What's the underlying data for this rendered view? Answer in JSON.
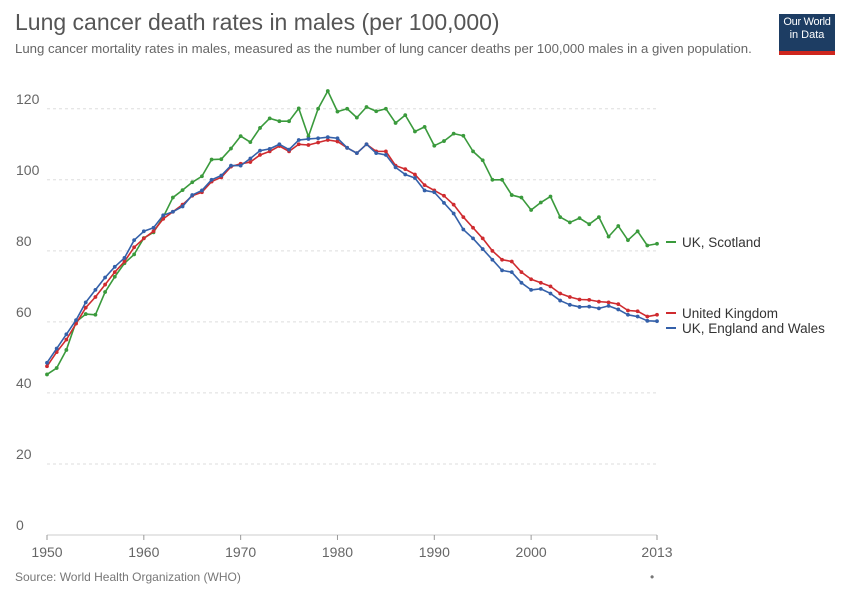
{
  "header": {
    "title": "Lung cancer death rates in males (per 100,000)",
    "subtitle": "Lung cancer mortality rates in males, measured as the number of lung cancer deaths per 100,000 males in a given population.",
    "logo_line1": "Our World",
    "logo_line2": "in Data"
  },
  "footer": {
    "source": "Source: World Health Organization (WHO)",
    "dot": "•"
  },
  "colors": {
    "scotland": "#3a9a3c",
    "united_kingdom": "#cf2b2f",
    "england_wales": "#3460a9",
    "grid": "#dddddd"
  },
  "chart_data": {
    "type": "line",
    "title": "Lung cancer death rates in males (per 100,000)",
    "subtitle": "Lung cancer mortality rates in males, measured as the number of lung cancer deaths per 100,000 males in a given population.",
    "xlabel": "",
    "ylabel": "",
    "xlim": [
      1950,
      2013
    ],
    "ylim": [
      0,
      125
    ],
    "x_ticks": [
      "1950",
      "1960",
      "1970",
      "1980",
      "1990",
      "2000",
      "2013"
    ],
    "y_ticks": [
      "0",
      "20",
      "40",
      "60",
      "80",
      "100",
      "120"
    ],
    "grid": "horizontal dashed",
    "legend_placement": "right, at line ends",
    "x": [
      1950,
      1951,
      1952,
      1953,
      1954,
      1955,
      1956,
      1957,
      1958,
      1959,
      1960,
      1961,
      1962,
      1963,
      1964,
      1965,
      1966,
      1967,
      1968,
      1969,
      1970,
      1971,
      1972,
      1973,
      1974,
      1975,
      1976,
      1977,
      1978,
      1979,
      1980,
      1981,
      1982,
      1983,
      1984,
      1985,
      1986,
      1987,
      1988,
      1989,
      1990,
      1991,
      1992,
      1993,
      1994,
      1995,
      1996,
      1997,
      1998,
      1999,
      2000,
      2001,
      2002,
      2003,
      2004,
      2005,
      2006,
      2007,
      2008,
      2009,
      2010,
      2011,
      2012,
      2013
    ],
    "series": [
      {
        "name": "UK, Scotland",
        "color": "#3a9a3c",
        "values": [
          45.2,
          47.0,
          52.1,
          60.0,
          62.2,
          62.0,
          68.4,
          72.7,
          76.5,
          79.0,
          83.6,
          85.2,
          89.5,
          95.0,
          97.1,
          99.3,
          101.0,
          105.7,
          105.8,
          108.8,
          112.3,
          110.6,
          114.6,
          117.3,
          116.5,
          116.5,
          120.1,
          112.2,
          120.0,
          125.0,
          119.2,
          120.0,
          117.5,
          120.5,
          119.3,
          120.0,
          116.0,
          118.2,
          113.6,
          114.9,
          109.6,
          110.9,
          113.0,
          112.4,
          108.0,
          105.5,
          100.0,
          100.0,
          95.7,
          95.0,
          91.5,
          93.6,
          95.3,
          89.5,
          88.0,
          89.2,
          87.5,
          89.5,
          84.0,
          87.0,
          83.0,
          85.5,
          81.5,
          82.0
        ]
      },
      {
        "name": "United Kingdom",
        "color": "#cf2b2f",
        "values": [
          47.5,
          51.5,
          55.0,
          59.5,
          64.0,
          67.0,
          70.5,
          74.0,
          77.0,
          81.0,
          83.5,
          85.5,
          89.0,
          91.0,
          93.0,
          95.5,
          96.5,
          99.5,
          100.7,
          103.7,
          104.5,
          105.0,
          107.0,
          108.0,
          109.5,
          108.0,
          110.0,
          109.8,
          110.5,
          111.2,
          110.8,
          109.0,
          107.5,
          110.0,
          108.0,
          108.0,
          104.0,
          103.0,
          101.5,
          98.5,
          97.0,
          95.5,
          93.0,
          89.5,
          86.5,
          83.5,
          80.0,
          77.5,
          77.0,
          74.0,
          72.0,
          71.0,
          70.0,
          68.0,
          67.0,
          66.3,
          66.2,
          65.7,
          65.5,
          65.0,
          63.2,
          63.0,
          61.5,
          62.0
        ]
      },
      {
        "name": "UK, England and Wales",
        "color": "#3460a9",
        "values": [
          48.5,
          52.5,
          56.5,
          60.5,
          65.5,
          69.0,
          72.5,
          75.5,
          78.0,
          83.0,
          85.5,
          86.5,
          90.0,
          91.0,
          92.5,
          95.7,
          97.0,
          100.0,
          101.2,
          104.0,
          104.0,
          106.0,
          108.2,
          108.7,
          110.0,
          108.5,
          111.2,
          111.5,
          111.7,
          112.0,
          111.7,
          109.0,
          107.5,
          110.0,
          107.5,
          107.0,
          103.5,
          101.5,
          100.5,
          97.0,
          96.5,
          93.5,
          90.5,
          86.0,
          83.5,
          80.5,
          77.5,
          74.5,
          74.0,
          71.0,
          69.0,
          69.3,
          68.0,
          66.0,
          64.8,
          64.2,
          64.3,
          63.8,
          64.5,
          63.5,
          62.0,
          61.5,
          60.3,
          60.2
        ]
      }
    ]
  }
}
